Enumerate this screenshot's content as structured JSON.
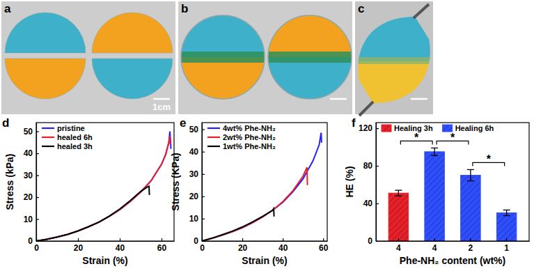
{
  "chart_data": [
    {
      "type": "line",
      "title": "d",
      "x_label": "Strain (%)",
      "y_label": "Stress (kPa)",
      "xlim": [
        0,
        66
      ],
      "ylim": [
        0,
        54
      ],
      "xticks": [
        0,
        20,
        40,
        60
      ],
      "yticks": [
        0,
        10,
        20,
        30,
        40,
        50
      ],
      "legend": "upper left",
      "series": [
        {
          "name": "pristine",
          "color": "#2222ff",
          "x": [
            0,
            5,
            10,
            15,
            20,
            25,
            30,
            35,
            40,
            45,
            50,
            55,
            60,
            62,
            63.5,
            64,
            64.3,
            64.5
          ],
          "values": [
            0,
            0.8,
            1.8,
            3,
            4.6,
            6.5,
            8.6,
            11.2,
            14.3,
            18,
            22.3,
            27.5,
            35,
            39.5,
            45,
            50,
            46,
            42
          ]
        },
        {
          "name": "healed 6h",
          "color": "#e8202a",
          "x": [
            0,
            5,
            10,
            15,
            20,
            25,
            30,
            35,
            40,
            45,
            50,
            55,
            60,
            62,
            63.5,
            64,
            64.2
          ],
          "values": [
            0,
            0.8,
            1.8,
            3,
            4.6,
            6.5,
            8.6,
            11.2,
            14.3,
            18,
            22.3,
            27.5,
            35,
            39.5,
            45,
            48,
            44
          ]
        },
        {
          "name": "healed 3h",
          "color": "#000000",
          "x": [
            0,
            5,
            10,
            15,
            20,
            25,
            30,
            35,
            40,
            45,
            50,
            53,
            54,
            54.2
          ],
          "values": [
            0,
            0.8,
            1.8,
            3,
            4.6,
            6.5,
            8.6,
            11.4,
            14.6,
            18.4,
            22.6,
            24.5,
            25,
            21
          ]
        }
      ]
    },
    {
      "type": "line",
      "title": "e",
      "x_label": "Strain (%)",
      "y_label": "Stress (KPa)",
      "xlim": [
        0,
        62
      ],
      "ylim": [
        0,
        53
      ],
      "xticks": [
        0,
        20,
        40,
        60
      ],
      "yticks": [
        0,
        10,
        20,
        30,
        40,
        50
      ],
      "legend": "upper left",
      "series": [
        {
          "name": "4wt% Phe-NH₂",
          "color": "#2222ff",
          "x": [
            0,
            5,
            10,
            15,
            20,
            25,
            30,
            35,
            40,
            45,
            50,
            55,
            58,
            59,
            59.2
          ],
          "values": [
            0,
            1.2,
            2.6,
            4.2,
            6,
            8.2,
            10.8,
            13.8,
            17.3,
            22,
            27.8,
            36,
            43,
            48.5,
            44
          ]
        },
        {
          "name": "2wt% Phe-NH₂",
          "color": "#e8202a",
          "x": [
            0,
            5,
            10,
            15,
            20,
            25,
            30,
            35,
            40,
            45,
            50,
            52,
            52.2
          ],
          "values": [
            0,
            1.2,
            2.6,
            4.2,
            6,
            8.2,
            10.8,
            13.8,
            17.6,
            22.5,
            29,
            33,
            25
          ]
        },
        {
          "name": "1wt% Phe-NH₂",
          "color": "#000000",
          "x": [
            0,
            5,
            10,
            15,
            20,
            25,
            30,
            35,
            35.5,
            35.7
          ],
          "values": [
            0,
            1.3,
            2.8,
            4.4,
            6.3,
            8.5,
            11,
            13.8,
            14.5,
            11
          ]
        }
      ]
    },
    {
      "type": "bar",
      "title": "f",
      "x_label": "Phe-NH₂ content (wt%)",
      "y_label": "HE (%)",
      "categories": [
        "4",
        "4",
        "2",
        "1"
      ],
      "ylim": [
        0,
        126
      ],
      "yticks": [
        0,
        40,
        80,
        120
      ],
      "legend": "upper left",
      "series": [
        {
          "name": "Healing 3h",
          "color": "#e8202a",
          "values": [
            51,
            null,
            null,
            null
          ],
          "errors": [
            3,
            null,
            null,
            null
          ]
        },
        {
          "name": "Healing 6h",
          "color": "#2f4fff",
          "values": [
            null,
            95,
            70,
            30
          ],
          "errors": [
            null,
            4,
            6,
            3
          ]
        }
      ],
      "significance": [
        {
          "from": 0,
          "to": 1,
          "label": "*"
        },
        {
          "from": 1,
          "to": 2,
          "label": "*"
        },
        {
          "from": 2,
          "to": 3,
          "label": "*"
        }
      ]
    }
  ],
  "photos": [
    {
      "title": "a",
      "scale_bar": "1cm"
    },
    {
      "title": "b"
    },
    {
      "title": "c"
    }
  ]
}
